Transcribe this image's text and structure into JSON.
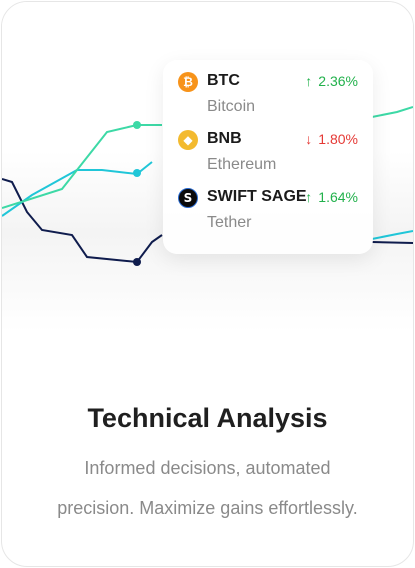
{
  "colors": {
    "green": "#22b14c",
    "red": "#e53935",
    "navy": "#0f1c4d",
    "teal": "#20c6d8",
    "mint": "#3dd9a6"
  },
  "tickers": [
    {
      "symbol": "BTC",
      "name": "Bitcoin",
      "change": "2.36%",
      "direction": "up",
      "icon": "bitcoin-icon",
      "icon_color": "#f7931a",
      "icon_glyph": "₿"
    },
    {
      "symbol": "BNB",
      "name": "Ethereum",
      "change": "1.80%",
      "direction": "down",
      "icon": "bnb-icon",
      "icon_color": "#f3ba2f",
      "icon_glyph": "◆"
    },
    {
      "symbol": "SWIFT SAGE",
      "name": "Tether",
      "change": "1.64%",
      "direction": "up",
      "icon": "swift-sage-icon",
      "icon_color": "#0a0a0a",
      "icon_glyph": "S"
    }
  ],
  "feature": {
    "title": "Technical Analysis",
    "description_line1": "Informed decisions, automated",
    "description_line2": "precision. Maximize gains effortlessly."
  }
}
